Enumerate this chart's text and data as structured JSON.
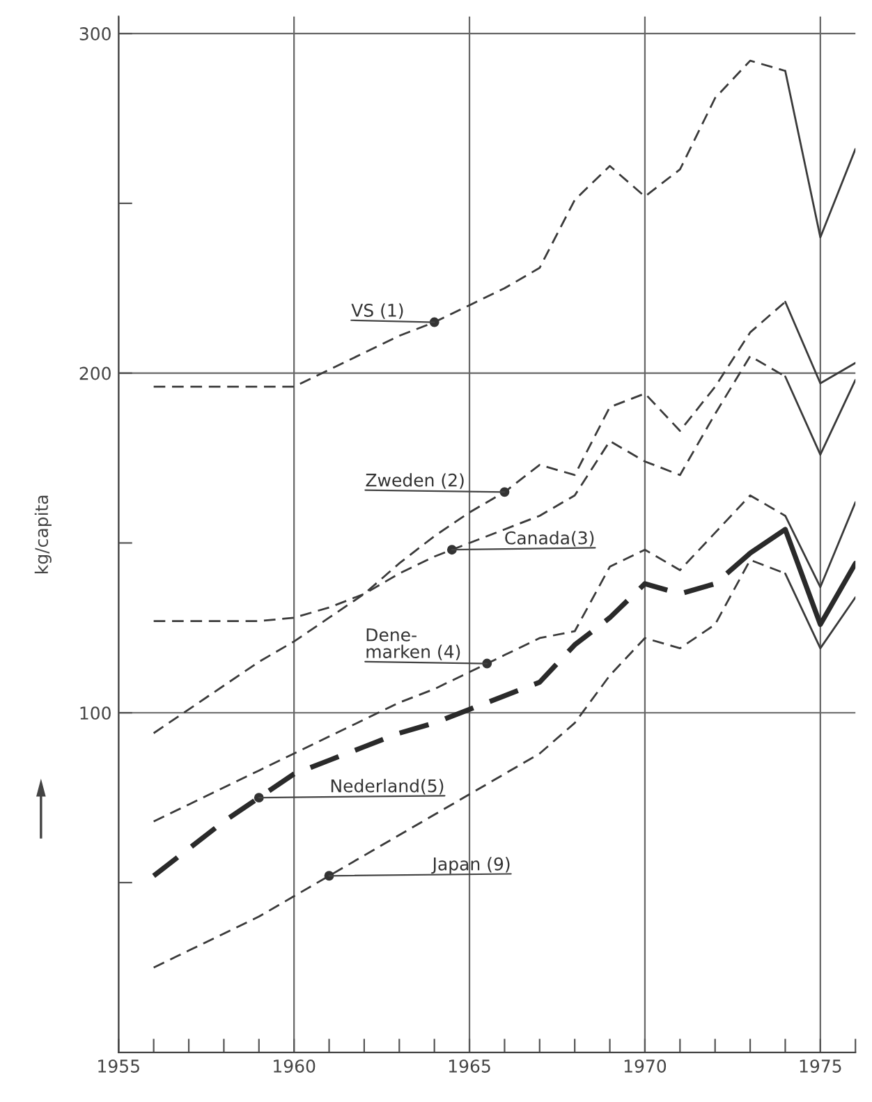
{
  "chart_data": {
    "type": "line",
    "ylabel": "kg/capita",
    "xlim": [
      1955,
      1976
    ],
    "ylim": [
      0,
      305
    ],
    "xticks": [
      1955,
      {
        "value": 1956,
        "label": null
      },
      {
        "value": 1957,
        "label": null
      },
      {
        "value": 1958,
        "label": null
      },
      {
        "value": 1959,
        "label": null
      },
      1960,
      {
        "value": 1961,
        "label": null
      },
      {
        "value": 1962,
        "label": null
      },
      {
        "value": 1963,
        "label": null
      },
      {
        "value": 1964,
        "label": null
      },
      1965,
      {
        "value": 1966,
        "label": null
      },
      {
        "value": 1967,
        "label": null
      },
      {
        "value": 1968,
        "label": null
      },
      {
        "value": 1969,
        "label": null
      },
      1970,
      {
        "value": 1971,
        "label": null
      },
      {
        "value": 1972,
        "label": null
      },
      {
        "value": 1973,
        "label": null
      },
      {
        "value": 1974,
        "label": null
      },
      1975,
      {
        "value": 1976,
        "label": null
      }
    ],
    "yticks": [
      {
        "value": 50,
        "label": null
      },
      100,
      {
        "value": 150,
        "label": null
      },
      200,
      {
        "value": 250,
        "label": null
      },
      300
    ],
    "grid": true,
    "marker": "none",
    "series": [
      {
        "color": "#3a3a3a",
        "line_style": "dashed",
        "x": [
          1956,
          1957,
          1958,
          1959,
          1960,
          1961,
          1962,
          1963,
          1964,
          1965,
          1966,
          1967,
          1968,
          1969,
          1970,
          1971,
          1972,
          1973,
          1974
        ],
        "values": [
          196,
          196,
          196,
          196,
          196,
          201,
          206,
          211,
          215,
          220,
          225,
          231,
          251,
          261,
          252,
          260,
          281,
          292,
          289
        ]
      },
      {
        "color": "#3a3a3a",
        "line_style": "solid",
        "x": [
          1974,
          1975,
          1976
        ],
        "values": [
          289,
          240,
          266
        ]
      },
      {
        "color": "#3a3a3a",
        "line_style": "dashed",
        "x": [
          1956,
          1957,
          1958,
          1959,
          1960,
          1961,
          1962,
          1963,
          1964,
          1965,
          1966,
          1967,
          1968,
          1969,
          1970,
          1971,
          1972,
          1973,
          1974
        ],
        "values": [
          94,
          101,
          108,
          115,
          121,
          128,
          135,
          144,
          152,
          159,
          165,
          173,
          170,
          190,
          194,
          183,
          196,
          212,
          221
        ]
      },
      {
        "color": "#3a3a3a",
        "line_style": "solid",
        "x": [
          1974,
          1975,
          1976
        ],
        "values": [
          221,
          197,
          203
        ]
      },
      {
        "color": "#3a3a3a",
        "line_style": "dashed",
        "x": [
          1956,
          1957,
          1958,
          1959,
          1960,
          1961,
          1962,
          1963,
          1964,
          1965,
          1966,
          1967,
          1968,
          1969,
          1970,
          1971,
          1972,
          1973,
          1974
        ],
        "values": [
          127,
          127,
          127,
          127,
          128,
          131,
          135,
          141,
          146,
          150,
          154,
          158,
          164,
          180,
          174,
          170,
          188,
          205,
          199
        ]
      },
      {
        "color": "#3a3a3a",
        "line_style": "solid",
        "x": [
          1974,
          1975,
          1976
        ],
        "values": [
          199,
          176,
          198
        ]
      },
      {
        "color": "#3a3a3a",
        "line_style": "dashed",
        "x": [
          1956,
          1957,
          1958,
          1959,
          1960,
          1961,
          1962,
          1963,
          1964,
          1965,
          1966,
          1967,
          1968,
          1969,
          1970,
          1971,
          1972,
          1973,
          1974
        ],
        "values": [
          68,
          73,
          78,
          83,
          88,
          93,
          98,
          103,
          107,
          112,
          117,
          122,
          124,
          143,
          148,
          142,
          153,
          164,
          158
        ]
      },
      {
        "color": "#3a3a3a",
        "line_style": "solid",
        "x": [
          1974,
          1975,
          1976
        ],
        "values": [
          158,
          137,
          162
        ]
      },
      {
        "color": "#2a2a2a",
        "line_style": "dashed",
        "x": [
          1956,
          1957,
          1958,
          1959,
          1960,
          1961,
          1962,
          1963,
          1964,
          1965,
          1966,
          1967,
          1968,
          1969,
          1970,
          1971,
          1972,
          1973
        ],
        "values": [
          52,
          60,
          68,
          75,
          82,
          86,
          90,
          94,
          97,
          101,
          105,
          109,
          120,
          128,
          138,
          135,
          138,
          147
        ]
      },
      {
        "color": "#2a2a2a",
        "line_style": "solid",
        "x": [
          1973,
          1974,
          1975,
          1976
        ],
        "values": [
          147,
          154,
          126,
          144
        ]
      },
      {
        "color": "#3a3a3a",
        "line_style": "dashed",
        "x": [
          1956,
          1957,
          1958,
          1959,
          1960,
          1961,
          1962,
          1963,
          1964,
          1965,
          1966,
          1967,
          1968,
          1969,
          1970,
          1971,
          1972,
          1973,
          1974
        ],
        "values": [
          25,
          30,
          35,
          40,
          46,
          52,
          58,
          64,
          70,
          76,
          82,
          88,
          97,
          111,
          122,
          119,
          126,
          145,
          141
        ]
      },
      {
        "color": "#3a3a3a",
        "line_style": "solid",
        "x": [
          1974,
          1975,
          1976
        ],
        "values": [
          141,
          119,
          134
        ]
      }
    ],
    "annotations": [
      {
        "text": "VS (1)",
        "x": 1964,
        "y": 215
      },
      {
        "text": "Zweden (2)",
        "x": 1966,
        "y": 165
      },
      {
        "text": "Canada(3)",
        "x": 1964.5,
        "y": 148
      },
      {
        "text": "Dene-\nmarken (4)",
        "x": 1965.5,
        "y": 114.5
      },
      {
        "text": "Nederland(5)",
        "x": 1959,
        "y": 75
      },
      {
        "text": "Japan (9)",
        "x": 1961,
        "y": 52
      }
    ]
  }
}
